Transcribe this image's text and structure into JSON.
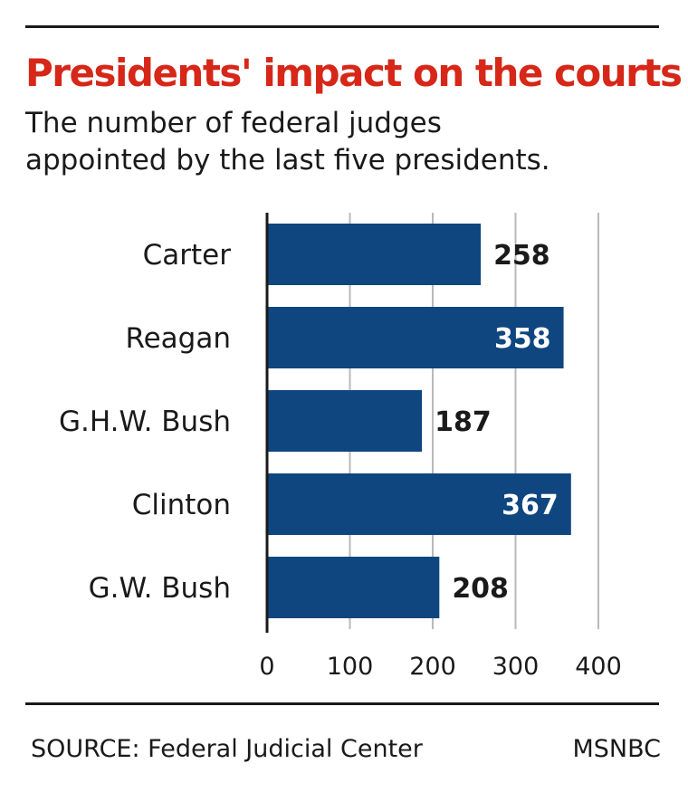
{
  "header": {
    "title": "Presidents' impact on the courts",
    "subtitle_line1": "The number of federal judges",
    "subtitle_line2": "appointed by the last five presidents."
  },
  "footer": {
    "source": "SOURCE: Federal Judicial Center",
    "credit": "MSNBC"
  },
  "colors": {
    "bar": "#0f4680",
    "title": "#d62718",
    "label_inside": "#ffffff",
    "label_outside": "#1a1a1a"
  },
  "chart_data": {
    "type": "bar",
    "orientation": "horizontal",
    "categories": [
      "Carter",
      "Reagan",
      "G.H.W. Bush",
      "Clinton",
      "G.W. Bush"
    ],
    "values": [
      258,
      358,
      187,
      367,
      208
    ],
    "data_labels": [
      "258",
      "358",
      "187",
      "367",
      "208"
    ],
    "xlim": [
      0,
      400
    ],
    "x_ticks": [
      0,
      100,
      200,
      300,
      400
    ],
    "grid": "vertical"
  }
}
